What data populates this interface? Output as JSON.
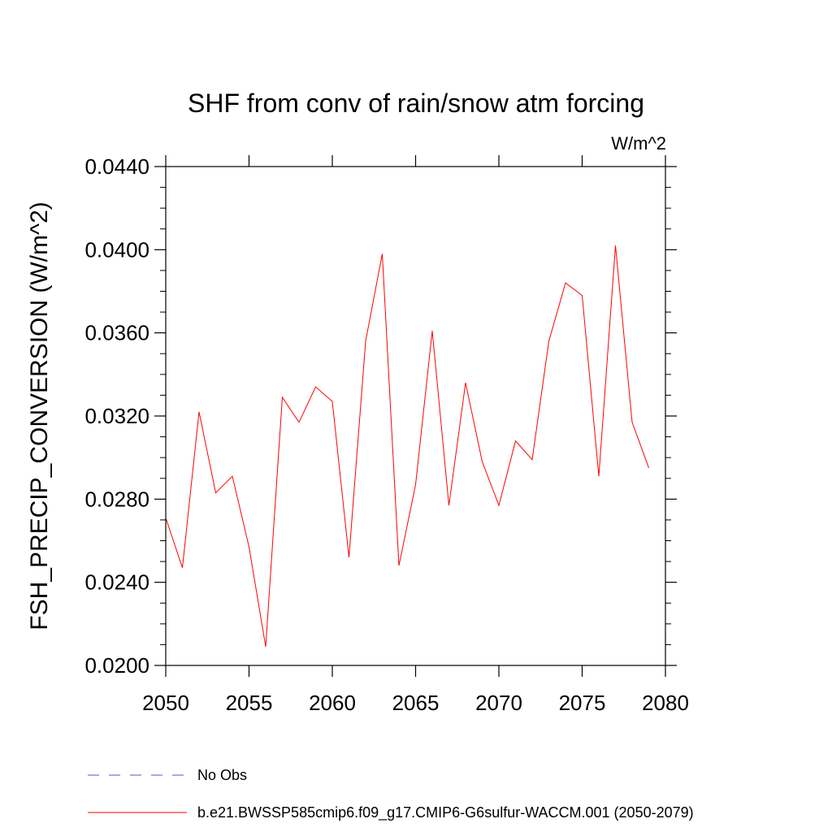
{
  "chart_data": {
    "type": "line",
    "title": "SHF from conv of rain/snow atm forcing",
    "units_label": "W/m^2",
    "xlabel": "",
    "ylabel": "FSH_PRECIP_CONVERSION  (W/m^2)",
    "xlim": [
      2050,
      2080
    ],
    "ylim": [
      0.02,
      0.044
    ],
    "x_ticks": [
      2050,
      2055,
      2060,
      2065,
      2070,
      2075,
      2080
    ],
    "x_tick_labels": [
      "2050",
      "2055",
      "2060",
      "2065",
      "2070",
      "2075",
      "2080"
    ],
    "y_ticks": [
      0.02,
      0.024,
      0.028,
      0.032,
      0.036,
      0.04,
      0.044
    ],
    "y_tick_labels": [
      "0.0200",
      "0.0240",
      "0.0280",
      "0.0320",
      "0.0360",
      "0.0400",
      "0.0440"
    ],
    "grid": false,
    "legend_position": "bottom",
    "series": [
      {
        "name": "No Obs",
        "color": "#5a4fcf",
        "style": "dashed",
        "x": [],
        "values": []
      },
      {
        "name": "b.e21.BWSSP585cmip6.f09_g17.CMIP6-G6sulfur-WACCM.001 (2050-2079)",
        "color": "#ff0000",
        "style": "solid",
        "x": [
          2050,
          2051,
          2052,
          2053,
          2054,
          2055,
          2056,
          2057,
          2058,
          2059,
          2060,
          2061,
          2062,
          2063,
          2064,
          2065,
          2066,
          2067,
          2068,
          2069,
          2070,
          2071,
          2072,
          2073,
          2074,
          2075,
          2076,
          2077,
          2078,
          2079
        ],
        "values": [
          0.0271,
          0.0247,
          0.0322,
          0.0283,
          0.0291,
          0.0257,
          0.0209,
          0.0329,
          0.0317,
          0.0334,
          0.0327,
          0.0252,
          0.0356,
          0.0398,
          0.0248,
          0.0287,
          0.0361,
          0.0277,
          0.0336,
          0.0298,
          0.0277,
          0.0308,
          0.0299,
          0.0356,
          0.0384,
          0.0378,
          0.0291,
          0.0402,
          0.0317,
          0.0295
        ]
      }
    ]
  }
}
